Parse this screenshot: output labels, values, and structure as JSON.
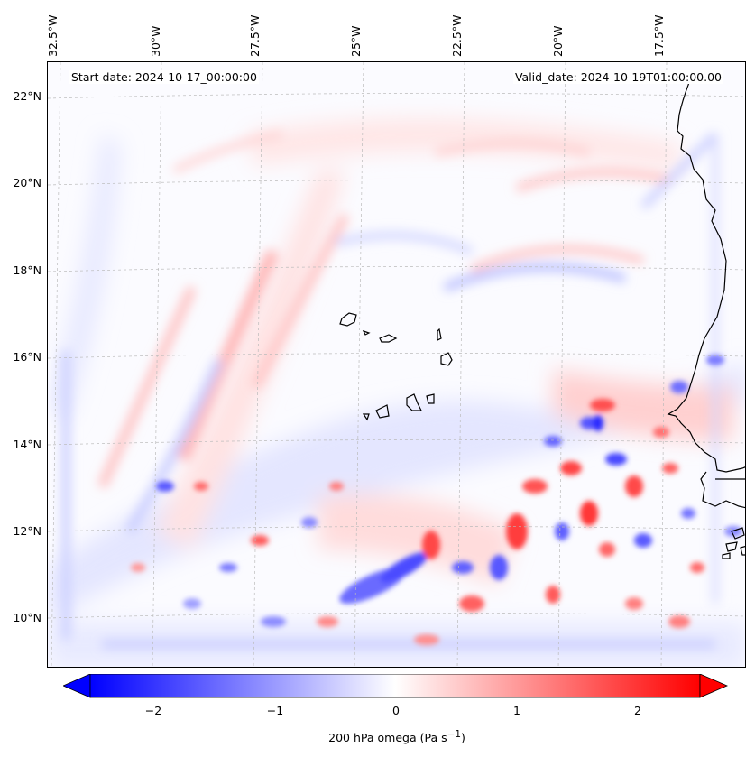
{
  "map": {
    "variable": "200 hPa omega",
    "units": "Pa s",
    "units_exponent": "−1",
    "start_date_text": "Start date: 2024-10-17_00:00:00",
    "valid_date_text": "Valid_date: 2024-10-19T01:00:00.00",
    "lon_labels": [
      "32.5°W",
      "30°W",
      "27.5°W",
      "25°W",
      "22.5°W",
      "20°W",
      "17.5°W"
    ],
    "lat_labels": [
      "22°N",
      "20°N",
      "18°N",
      "16°N",
      "14°N",
      "12°N",
      "10°N"
    ],
    "colormap": "bwr",
    "colors": {
      "negative": "#0000ff",
      "zero": "#ffffff",
      "positive": "#ff0000",
      "coastline": "#000000",
      "gridline": "#bbbbbb"
    },
    "gridlines": true,
    "features": [
      "Cabo Verde islands",
      "West African coastline (Senegal, Gambia)"
    ]
  },
  "colorbar": {
    "min": -2.6,
    "max": 2.6,
    "tick_labels": [
      "−2",
      "−1",
      "0",
      "1",
      "2"
    ],
    "tick_values": [
      -2,
      -1,
      0,
      1,
      2
    ],
    "extend": "both",
    "label": "200 hPa omega (Pa s"
  }
}
